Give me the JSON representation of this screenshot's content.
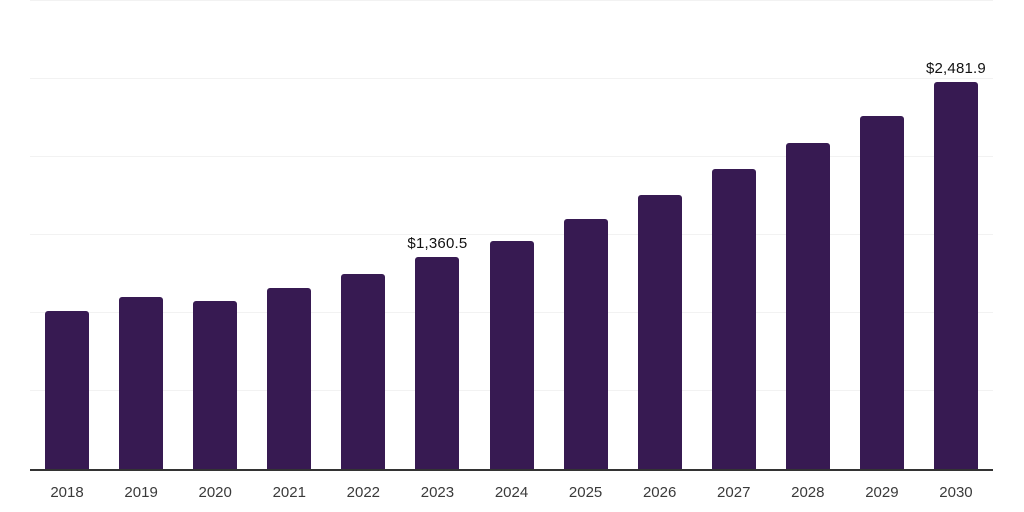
{
  "chart_data": {
    "type": "bar",
    "title": "",
    "xlabel": "",
    "ylabel": "",
    "categories": [
      "2018",
      "2019",
      "2020",
      "2021",
      "2022",
      "2023",
      "2024",
      "2025",
      "2026",
      "2027",
      "2028",
      "2029",
      "2030"
    ],
    "values": [
      1013,
      1100,
      1074,
      1160,
      1250,
      1360.5,
      1462,
      1603,
      1757,
      1920,
      2092,
      2260,
      2481.9
    ],
    "labeled_values": {
      "2023": "$1,360.5",
      "2030": "$2,481.9"
    },
    "ylim": [
      0,
      3000
    ],
    "gridline_step": 500,
    "grid": true,
    "legend_position": "none",
    "y_axis_labels_visible": false,
    "bar_color": "#371a52",
    "grid_color": "#f2f2f2",
    "axis_color": "#333333",
    "data_label_color": "#111111",
    "tick_label_color": "#3a3a3a",
    "background": "#ffffff"
  }
}
